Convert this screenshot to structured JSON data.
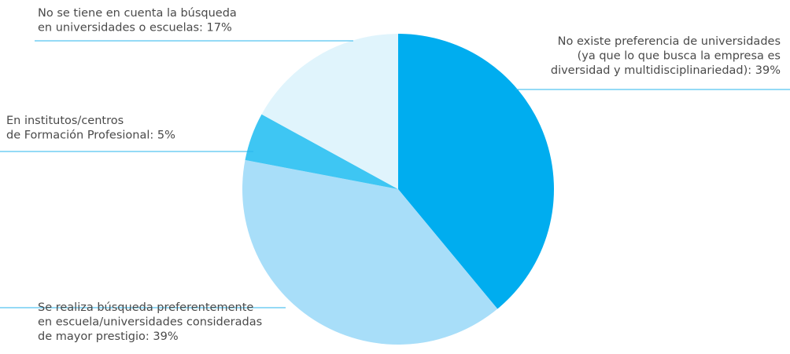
{
  "chart_data": {
    "type": "pie",
    "title": "",
    "slices": [
      {
        "label_lines": [
          "No existe preferencia de universidades",
          "(ya que lo que busca la empresa es",
          "diversidad y multidisciplinariedad): 39%"
        ],
        "value": 39,
        "color": "#00adef"
      },
      {
        "label_lines": [
          "Se realiza búsqueda preferentemente",
          "en escuela/universidades consideradas",
          "de mayor prestigio: 39%"
        ],
        "value": 39,
        "color": "#a8def9"
      },
      {
        "label_lines": [
          "En institutos/centros",
          "de Formación Profesional: 5%"
        ],
        "value": 5,
        "color": "#3ec6f3"
      },
      {
        "label_lines": [
          "No se tiene en cuenta la búsqueda",
          "en universidades o escuelas: 17%"
        ],
        "value": 17,
        "color": "#e0f4fc"
      }
    ],
    "leader_line_color": "#29b6ec",
    "label_color": "#4a4a4a"
  }
}
